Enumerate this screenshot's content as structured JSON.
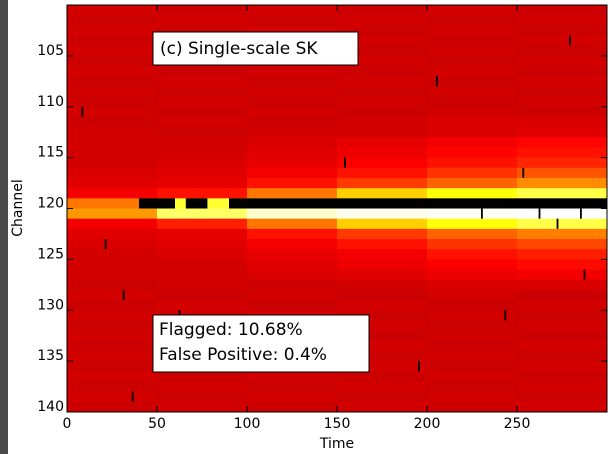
{
  "chart_data": {
    "type": "heatmap",
    "xlabel": "Time",
    "ylabel": "Channel",
    "annotations": [
      "(c) Single-scale SK",
      "Flagged: 10.68%",
      "False Positive: 0.4%"
    ],
    "x_bins": [
      0,
      50,
      100,
      150,
      200,
      250,
      300
    ],
    "y_bins": [
      100,
      101,
      102,
      103,
      104,
      105,
      106,
      107,
      108,
      109,
      110,
      111,
      112,
      113,
      114,
      115,
      116,
      117,
      118,
      119,
      120,
      121,
      122,
      123,
      124,
      125,
      126,
      127,
      128,
      129,
      130,
      131,
      132,
      133,
      134,
      135,
      136,
      137,
      138,
      139,
      140
    ],
    "values": [
      [
        0.31,
        0.3,
        0.31,
        0.3,
        0.31,
        0.3
      ],
      [
        0.3,
        0.31,
        0.3,
        0.31,
        0.3,
        0.31
      ],
      [
        0.31,
        0.3,
        0.31,
        0.3,
        0.31,
        0.3
      ],
      [
        0.3,
        0.31,
        0.3,
        0.31,
        0.3,
        0.31
      ],
      [
        0.31,
        0.3,
        0.31,
        0.3,
        0.31,
        0.3
      ],
      [
        0.3,
        0.31,
        0.3,
        0.31,
        0.3,
        0.31
      ],
      [
        0.31,
        0.3,
        0.31,
        0.3,
        0.31,
        0.3
      ],
      [
        0.3,
        0.31,
        0.3,
        0.31,
        0.3,
        0.31
      ],
      [
        0.31,
        0.3,
        0.31,
        0.3,
        0.31,
        0.3
      ],
      [
        0.3,
        0.31,
        0.3,
        0.31,
        0.3,
        0.31
      ],
      [
        0.31,
        0.3,
        0.31,
        0.3,
        0.31,
        0.3
      ],
      [
        0.3,
        0.31,
        0.3,
        0.31,
        0.32,
        0.32
      ],
      [
        0.31,
        0.3,
        0.31,
        0.31,
        0.32,
        0.33
      ],
      [
        0.31,
        0.31,
        0.32,
        0.34,
        0.36,
        0.38
      ],
      [
        0.31,
        0.31,
        0.33,
        0.35,
        0.38,
        0.4
      ],
      [
        0.31,
        0.32,
        0.34,
        0.37,
        0.4,
        0.43
      ],
      [
        0.32,
        0.33,
        0.36,
        0.4,
        0.45,
        0.5
      ],
      [
        0.33,
        0.34,
        0.4,
        0.46,
        0.52,
        0.58
      ],
      [
        0.36,
        0.4,
        0.55,
        0.68,
        0.76,
        0.82
      ],
      [
        0.55,
        0.8,
        0.92,
        0.96,
        0.97,
        0.98
      ],
      [
        0.6,
        0.85,
        0.95,
        0.98,
        0.99,
        1.0
      ],
      [
        0.36,
        0.42,
        0.55,
        0.68,
        0.76,
        0.82
      ],
      [
        0.33,
        0.34,
        0.4,
        0.46,
        0.52,
        0.56
      ],
      [
        0.32,
        0.33,
        0.36,
        0.4,
        0.45,
        0.48
      ],
      [
        0.31,
        0.32,
        0.34,
        0.36,
        0.4,
        0.42
      ],
      [
        0.31,
        0.31,
        0.33,
        0.35,
        0.37,
        0.39
      ],
      [
        0.31,
        0.31,
        0.32,
        0.33,
        0.35,
        0.36
      ],
      [
        0.3,
        0.31,
        0.3,
        0.31,
        0.32,
        0.32
      ],
      [
        0.31,
        0.3,
        0.31,
        0.3,
        0.31,
        0.3
      ],
      [
        0.3,
        0.31,
        0.3,
        0.31,
        0.3,
        0.31
      ],
      [
        0.31,
        0.3,
        0.31,
        0.3,
        0.31,
        0.3
      ],
      [
        0.3,
        0.31,
        0.3,
        0.31,
        0.3,
        0.31
      ],
      [
        0.31,
        0.3,
        0.31,
        0.3,
        0.31,
        0.3
      ],
      [
        0.3,
        0.31,
        0.3,
        0.31,
        0.3,
        0.31
      ],
      [
        0.31,
        0.3,
        0.31,
        0.3,
        0.31,
        0.3
      ],
      [
        0.3,
        0.31,
        0.3,
        0.31,
        0.3,
        0.31
      ],
      [
        0.31,
        0.3,
        0.31,
        0.3,
        0.31,
        0.3
      ],
      [
        0.3,
        0.31,
        0.3,
        0.31,
        0.3,
        0.31
      ],
      [
        0.31,
        0.3,
        0.31,
        0.3,
        0.31,
        0.3
      ],
      [
        0.3,
        0.31,
        0.3,
        0.31,
        0.3,
        0.31
      ]
    ],
    "colormap": "hot",
    "vmin": 0,
    "vmax": 1,
    "flags": [
      [
        40,
        60,
        119,
        120
      ],
      [
        66,
        78,
        119,
        120
      ],
      [
        90,
        300,
        119,
        120
      ],
      [
        8,
        9,
        110,
        111
      ],
      [
        205,
        206,
        107,
        108
      ],
      [
        154,
        155,
        115,
        116
      ],
      [
        36,
        37,
        138,
        139
      ],
      [
        62,
        63,
        130,
        131
      ],
      [
        243,
        244,
        130,
        131
      ],
      [
        287,
        288,
        126,
        127
      ],
      [
        272,
        273,
        121,
        122
      ],
      [
        279,
        280,
        103,
        104
      ],
      [
        150,
        151,
        135,
        136
      ],
      [
        195,
        196,
        135,
        136
      ],
      [
        253,
        254,
        116,
        117
      ],
      [
        31,
        32,
        128,
        129
      ],
      [
        21,
        22,
        123,
        124
      ],
      [
        230,
        231,
        120,
        121
      ],
      [
        262,
        263,
        120,
        121
      ],
      [
        285,
        286,
        120,
        121
      ]
    ],
    "flag_color": "#000000",
    "xlim": [
      0,
      300
    ],
    "ylim": [
      100,
      140
    ],
    "y_inverted": true,
    "xticks": [
      0,
      50,
      100,
      150,
      200,
      250
    ],
    "yticks": [
      105,
      110,
      115,
      120,
      125,
      130,
      135,
      140
    ]
  }
}
